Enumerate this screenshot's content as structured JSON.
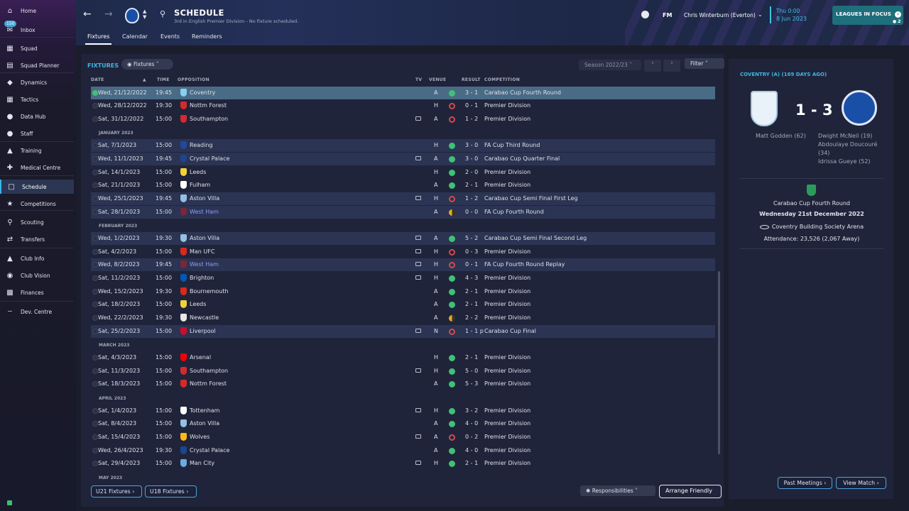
{
  "sidebar": {
    "items": [
      {
        "label": "Home",
        "icon": "home-icon"
      },
      {
        "label": "Inbox",
        "icon": "inbox-icon",
        "badge": "150"
      },
      {
        "label": "Squad",
        "icon": "shirt-icon"
      },
      {
        "label": "Squad Planner",
        "icon": "planner-icon"
      },
      {
        "label": "Dynamics",
        "icon": "dynamics-icon"
      },
      {
        "label": "Tactics",
        "icon": "tactics-icon"
      },
      {
        "label": "Data Hub",
        "icon": "data-hub-icon"
      },
      {
        "label": "Staff",
        "icon": "staff-icon"
      },
      {
        "label": "Training",
        "icon": "training-icon"
      },
      {
        "label": "Medical Centre",
        "icon": "medical-icon"
      },
      {
        "label": "Schedule",
        "icon": "calendar-icon"
      },
      {
        "label": "Competitions",
        "icon": "trophy-icon"
      },
      {
        "label": "Scouting",
        "icon": "scouting-icon"
      },
      {
        "label": "Transfers",
        "icon": "transfers-icon"
      },
      {
        "label": "Club Info",
        "icon": "shield-icon"
      },
      {
        "label": "Club Vision",
        "icon": "vision-icon"
      },
      {
        "label": "Finances",
        "icon": "finances-icon"
      },
      {
        "label": "Dev. Centre",
        "icon": "dev-centre-icon"
      }
    ]
  },
  "header": {
    "title": "SCHEDULE",
    "subtitle": "3rd in English Premier Division - No fixture scheduled.",
    "tabs": [
      "Fixtures",
      "Calendar",
      "Events",
      "Reminders"
    ],
    "fm_label": "FM",
    "manager": "Chris Winterburn (Everton)",
    "time": "Thu 0:00",
    "date": "8 Jun 2023",
    "leagues_focus": "LEAGUES IN FOCUS",
    "leagues_count": "2"
  },
  "fixtures": {
    "section_title": "FIXTURES",
    "view_dropdown": "Fixtures",
    "season_dropdown": "Season 2022/23",
    "filter_label": "Filter",
    "columns": {
      "date": "DATE",
      "time": "TIME",
      "opposition": "OPPOSITION",
      "tv": "TV",
      "venue": "VENUE",
      "result": "RESULT",
      "competition": "COMPETITION"
    },
    "months": [
      "JANUARY 2023",
      "FEBRUARY 2023",
      "MARCH 2023",
      "APRIL 2023",
      "MAY 2023"
    ],
    "rows": [
      {
        "date": "Wed, 21/12/2022",
        "time": "19:45",
        "opp": "Coventry",
        "tv": false,
        "venue": "A",
        "res": "w",
        "score": "3 - 1",
        "comp": "Carabao Cup Fourth Round",
        "club_color": "#8ad0f0"
      },
      {
        "date": "Wed, 28/12/2022",
        "time": "19:30",
        "opp": "Nottm Forest",
        "tv": false,
        "venue": "H",
        "res": "l",
        "score": "0 - 1",
        "comp": "Premier Division",
        "club_color": "#d62a2a"
      },
      {
        "date": "Sat, 31/12/2022",
        "time": "15:00",
        "opp": "Southampton",
        "tv": true,
        "venue": "A",
        "res": "l",
        "score": "1 - 2",
        "comp": "Premier Division",
        "club_color": "#d7282f"
      },
      {
        "date": "Sat, 7/1/2023",
        "time": "15:00",
        "opp": "Reading",
        "tv": false,
        "venue": "H",
        "res": "w",
        "score": "3 - 0",
        "comp": "FA Cup Third Round",
        "club_color": "#1e4a9a"
      },
      {
        "date": "Wed, 11/1/2023",
        "time": "19:45",
        "opp": "Crystal Palace",
        "tv": true,
        "venue": "A",
        "res": "w",
        "score": "3 - 0",
        "comp": "Carabao Cup Quarter Final",
        "club_color": "#1b458f"
      },
      {
        "date": "Sat, 14/1/2023",
        "time": "15:00",
        "opp": "Leeds",
        "tv": false,
        "venue": "H",
        "res": "w",
        "score": "2 - 0",
        "comp": "Premier Division",
        "club_color": "#f2d23a"
      },
      {
        "date": "Sat, 21/1/2023",
        "time": "15:00",
        "opp": "Fulham",
        "tv": false,
        "venue": "A",
        "res": "w",
        "score": "2 - 1",
        "comp": "Premier Division",
        "club_color": "#ffffff"
      },
      {
        "date": "Wed, 25/1/2023",
        "time": "19:45",
        "opp": "Aston Villa",
        "tv": true,
        "venue": "H",
        "res": "l",
        "score": "1 - 2",
        "comp": "Carabao Cup Semi Final First Leg",
        "club_color": "#95bfe5"
      },
      {
        "date": "Sat, 28/1/2023",
        "time": "15:00",
        "opp": "West Ham",
        "tv": false,
        "venue": "A",
        "res": "d",
        "score": "0 - 0",
        "comp": "FA Cup Fourth Round",
        "club_color": "#7a263a",
        "highlight": true
      },
      {
        "date": "Wed, 1/2/2023",
        "time": "19:30",
        "opp": "Aston Villa",
        "tv": true,
        "venue": "A",
        "res": "w",
        "score": "5 - 2",
        "comp": "Carabao Cup Semi Final Second Leg",
        "club_color": "#95bfe5"
      },
      {
        "date": "Sat, 4/2/2023",
        "time": "15:00",
        "opp": "Man UFC",
        "tv": true,
        "venue": "H",
        "res": "l",
        "score": "0 - 3",
        "comp": "Premier Division",
        "club_color": "#da291c"
      },
      {
        "date": "Wed, 8/2/2023",
        "time": "19:45",
        "opp": "West Ham",
        "tv": true,
        "venue": "H",
        "res": "l",
        "score": "0 - 1",
        "comp": "FA Cup Fourth Round Replay",
        "club_color": "#7a263a",
        "highlight": true
      },
      {
        "date": "Sat, 11/2/2023",
        "time": "15:00",
        "opp": "Brighton",
        "tv": true,
        "venue": "H",
        "res": "w",
        "score": "4 - 3",
        "comp": "Premier Division",
        "club_color": "#0057b8"
      },
      {
        "date": "Wed, 15/2/2023",
        "time": "19:30",
        "opp": "Bournemouth",
        "tv": false,
        "venue": "A",
        "res": "w",
        "score": "2 - 1",
        "comp": "Premier Division",
        "club_color": "#da291c"
      },
      {
        "date": "Sat, 18/2/2023",
        "time": "15:00",
        "opp": "Leeds",
        "tv": false,
        "venue": "A",
        "res": "w",
        "score": "2 - 1",
        "comp": "Premier Division",
        "club_color": "#f2d23a"
      },
      {
        "date": "Wed, 22/2/2023",
        "time": "19:30",
        "opp": "Newcastle",
        "tv": false,
        "venue": "A",
        "res": "d",
        "score": "2 - 2",
        "comp": "Premier Division",
        "club_color": "#e8e8e8"
      },
      {
        "date": "Sat, 25/2/2023",
        "time": "15:00",
        "opp": "Liverpool",
        "tv": true,
        "venue": "N",
        "res": "l",
        "score": "1 - 1 p",
        "comp": "Carabao Cup Final",
        "club_color": "#c8102e"
      },
      {
        "date": "Sat, 4/3/2023",
        "time": "15:00",
        "opp": "Arsenal",
        "tv": false,
        "venue": "H",
        "res": "w",
        "score": "2 - 1",
        "comp": "Premier Division",
        "club_color": "#ef0107"
      },
      {
        "date": "Sat, 11/3/2023",
        "time": "15:00",
        "opp": "Southampton",
        "tv": true,
        "venue": "H",
        "res": "w",
        "score": "5 - 0",
        "comp": "Premier Division",
        "club_color": "#d7282f"
      },
      {
        "date": "Sat, 18/3/2023",
        "time": "15:00",
        "opp": "Nottm Forest",
        "tv": false,
        "venue": "A",
        "res": "w",
        "score": "5 - 3",
        "comp": "Premier Division",
        "club_color": "#d62a2a"
      },
      {
        "date": "Sat, 1/4/2023",
        "time": "15:00",
        "opp": "Tottenham",
        "tv": true,
        "venue": "H",
        "res": "w",
        "score": "3 - 2",
        "comp": "Premier Division",
        "club_color": "#ffffff"
      },
      {
        "date": "Sat, 8/4/2023",
        "time": "15:00",
        "opp": "Aston Villa",
        "tv": false,
        "venue": "A",
        "res": "w",
        "score": "4 - 0",
        "comp": "Premier Division",
        "club_color": "#95bfe5"
      },
      {
        "date": "Sat, 15/4/2023",
        "time": "15:00",
        "opp": "Wolves",
        "tv": true,
        "venue": "A",
        "res": "l",
        "score": "0 - 2",
        "comp": "Premier Division",
        "club_color": "#fdb913"
      },
      {
        "date": "Wed, 26/4/2023",
        "time": "19:30",
        "opp": "Crystal Palace",
        "tv": false,
        "venue": "A",
        "res": "w",
        "score": "4 - 0",
        "comp": "Premier Division",
        "club_color": "#1b458f"
      },
      {
        "date": "Sat, 29/4/2023",
        "time": "15:00",
        "opp": "Man City",
        "tv": true,
        "venue": "H",
        "res": "w",
        "score": "2 - 1",
        "comp": "Premier Division",
        "club_color": "#6cabdd"
      }
    ],
    "bottom_buttons": {
      "u21": "U21 Fixtures",
      "u18": "U18 Fixtures",
      "responsibilities": "Responsibilities",
      "arrange": "Arrange Friendly"
    }
  },
  "match_panel": {
    "title": "COVENTRY (A) (169 DAYS AGO)",
    "score": "1 - 3",
    "home_scorers": "Matt Godden (62)",
    "away_scorers": [
      "Dwight McNeil (19)",
      "Abdoulaye Doucouré",
      "(34)",
      "Idrissa Gueye (52)"
    ],
    "competition": "Carabao Cup Fourth Round",
    "date": "Wednesday 21st December 2022",
    "stadium": "Coventry Building Society Arena",
    "attendance": "Attendance: 23,526 (2,067 Away)",
    "past_meetings": "Past Meetings",
    "view_match": "View Match"
  },
  "colors": {
    "accent": "#3fb6e2",
    "win": "#3fc176",
    "loss": "#d24b4b",
    "draw": "#e6a82b"
  }
}
